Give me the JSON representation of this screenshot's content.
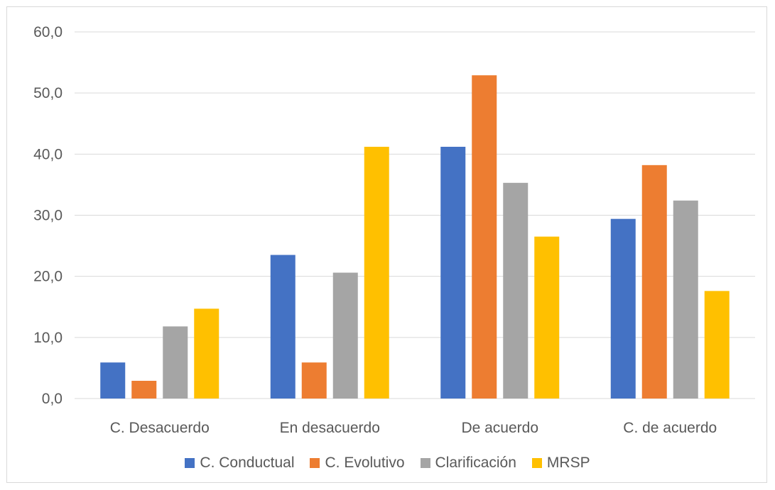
{
  "chart_data": {
    "type": "bar",
    "title": "",
    "xlabel": "",
    "ylabel": "",
    "ylim": [
      0,
      60
    ],
    "yticks": [
      "0,0",
      "10,0",
      "20,0",
      "30,0",
      "40,0",
      "50,0",
      "60,0"
    ],
    "grid": true,
    "legend_position": "bottom",
    "categories": [
      "C. Desacuerdo",
      "En desacuerdo",
      "De acuerdo",
      "C. de acuerdo"
    ],
    "series": [
      {
        "name": "C. Conductual",
        "color": "#4472c4",
        "values": [
          5.9,
          23.5,
          41.2,
          29.4
        ]
      },
      {
        "name": "C. Evolutivo",
        "color": "#ed7d31",
        "values": [
          2.9,
          5.9,
          52.9,
          38.2
        ]
      },
      {
        "name": "Clarificación",
        "color": "#a5a5a5",
        "values": [
          11.8,
          20.6,
          35.3,
          32.4
        ]
      },
      {
        "name": "MRSP",
        "color": "#ffc000",
        "values": [
          14.7,
          41.2,
          26.5,
          17.6
        ]
      }
    ]
  }
}
